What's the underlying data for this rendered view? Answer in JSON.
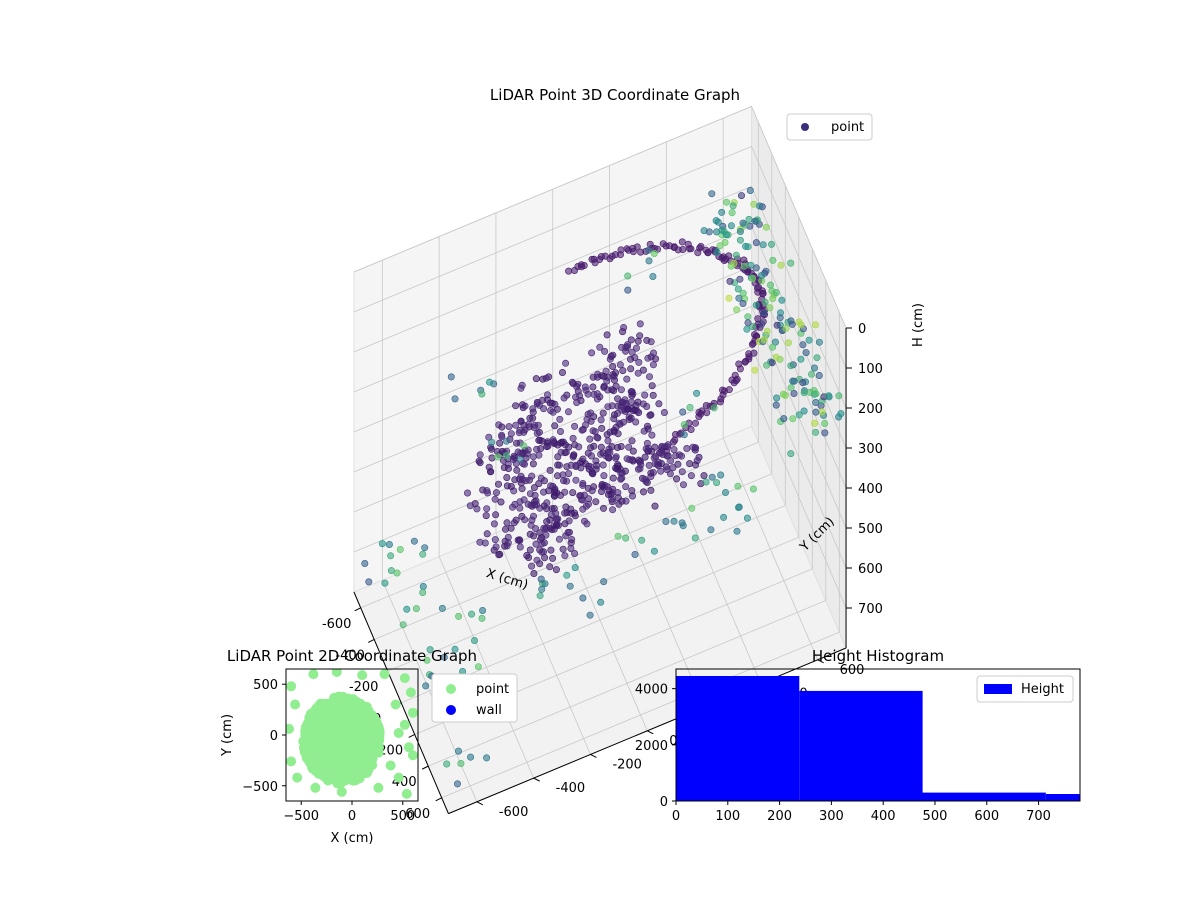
{
  "chart_data": [
    {
      "type": "scatter",
      "title": "LiDAR Point 3D Coordinate Graph",
      "xlabel": "X (cm)",
      "ylabel": "Y (cm)",
      "zlabel": "H (cm)",
      "xlim": [
        -700,
        700
      ],
      "ylim": [
        -700,
        700
      ],
      "zlim": [
        0,
        800
      ],
      "z_axis_inverted": true,
      "xticks": [
        -600,
        -400,
        -200,
        0,
        200,
        400,
        600
      ],
      "yticks": [
        -600,
        -400,
        -200,
        0,
        200,
        400,
        600
      ],
      "zticks": [
        0,
        100,
        200,
        300,
        400,
        500,
        600,
        700
      ],
      "colormap": "viridis",
      "legend": {
        "placement": "top-right",
        "entries": [
          {
            "label": "point",
            "color": "#3b2f7a"
          }
        ]
      },
      "grid": true,
      "series": [
        {
          "name": "point",
          "ring": [
            {
              "x": -620,
              "y": 40,
              "h": 180
            },
            {
              "x": -560,
              "y": 190,
              "h": 160
            },
            {
              "x": -470,
              "y": 330,
              "h": 150
            },
            {
              "x": -340,
              "y": 450,
              "h": 140
            },
            {
              "x": -180,
              "y": 530,
              "h": 130
            },
            {
              "x": 0,
              "y": 560,
              "h": 120
            },
            {
              "x": 180,
              "y": 530,
              "h": 120
            },
            {
              "x": 340,
              "y": 450,
              "h": 130
            },
            {
              "x": 470,
              "y": 330,
              "h": 140
            },
            {
              "x": 560,
              "y": 190,
              "h": 150
            },
            {
              "x": 620,
              "y": 40,
              "h": 160
            }
          ],
          "cluster": [
            {
              "x": -300,
              "y": -100,
              "h": 330
            },
            {
              "x": -220,
              "y": 60,
              "h": 340
            },
            {
              "x": -150,
              "y": -200,
              "h": 360
            },
            {
              "x": -80,
              "y": 120,
              "h": 330
            },
            {
              "x": 0,
              "y": -60,
              "h": 350
            },
            {
              "x": 80,
              "y": 40,
              "h": 340
            },
            {
              "x": 160,
              "y": -180,
              "h": 360
            },
            {
              "x": 240,
              "y": 80,
              "h": 330
            },
            {
              "x": 300,
              "y": -80,
              "h": 350
            },
            {
              "x": -260,
              "y": -260,
              "h": 420
            },
            {
              "x": -60,
              "y": -320,
              "h": 440
            },
            {
              "x": 140,
              "y": -300,
              "h": 430
            },
            {
              "x": 260,
              "y": -240,
              "h": 420
            },
            {
              "x": -360,
              "y": 160,
              "h": 320
            },
            {
              "x": 360,
              "y": 160,
              "h": 320
            }
          ],
          "scattered": [
            {
              "x": -640,
              "y": 620,
              "h": 250
            },
            {
              "x": -420,
              "y": 640,
              "h": 240
            },
            {
              "x": -200,
              "y": 650,
              "h": 230
            },
            {
              "x": 0,
              "y": 640,
              "h": 240
            },
            {
              "x": 220,
              "y": 650,
              "h": 230
            },
            {
              "x": 420,
              "y": 640,
              "h": 250
            },
            {
              "x": 620,
              "y": 620,
              "h": 240
            },
            {
              "x": 640,
              "y": 300,
              "h": 300
            },
            {
              "x": 650,
              "y": 0,
              "h": 320
            },
            {
              "x": 640,
              "y": -300,
              "h": 350
            },
            {
              "x": -650,
              "y": 300,
              "h": 300
            },
            {
              "x": -640,
              "y": -300,
              "h": 380
            },
            {
              "x": -400,
              "y": -600,
              "h": 600
            },
            {
              "x": -100,
              "y": -620,
              "h": 620
            },
            {
              "x": 200,
              "y": -600,
              "h": 650
            },
            {
              "x": 500,
              "y": -560,
              "h": 600
            },
            {
              "x": -500,
              "y": -200,
              "h": 500
            },
            {
              "x": 500,
              "y": -200,
              "h": 480
            },
            {
              "x": -300,
              "y": 400,
              "h": 520
            },
            {
              "x": 300,
              "y": 400,
              "h": 520
            },
            {
              "x": 0,
              "y": -450,
              "h": 700
            },
            {
              "x": 600,
              "y": -620,
              "h": 720
            },
            {
              "x": -620,
              "y": -620,
              "h": 740
            },
            {
              "x": 100,
              "y": 300,
              "h": 600
            }
          ]
        }
      ]
    },
    {
      "type": "scatter",
      "title": "LiDAR Point 2D Coordinate Graph",
      "xlabel": "X (cm)",
      "ylabel": "Y (cm)",
      "xlim": [
        -650,
        650
      ],
      "ylim": [
        -650,
        650
      ],
      "xticks": [
        -500,
        0,
        500
      ],
      "yticks": [
        500,
        0,
        -500
      ],
      "legend": {
        "placement": "outside-right",
        "entries": [
          {
            "label": "point",
            "color": "#90ee90"
          },
          {
            "label": "wall",
            "color": "#0000ff"
          }
        ]
      },
      "series": [
        {
          "name": "point",
          "cluster_center": {
            "x": -100,
            "y": -50
          },
          "cluster_radius": {
            "x": 380,
            "y": 430
          },
          "outliers": [
            {
              "x": -600,
              "y": 480
            },
            {
              "x": -560,
              "y": 300
            },
            {
              "x": -620,
              "y": 60
            },
            {
              "x": -600,
              "y": -260
            },
            {
              "x": -540,
              "y": -420
            },
            {
              "x": -380,
              "y": 600
            },
            {
              "x": -150,
              "y": 620
            },
            {
              "x": 100,
              "y": 590
            },
            {
              "x": 320,
              "y": 600
            },
            {
              "x": 520,
              "y": 560
            },
            {
              "x": 580,
              "y": 420
            },
            {
              "x": 600,
              "y": 220
            },
            {
              "x": 520,
              "y": 100
            },
            {
              "x": 560,
              "y": -120
            },
            {
              "x": 600,
              "y": -200
            },
            {
              "x": 460,
              "y": -420
            },
            {
              "x": 540,
              "y": -580
            },
            {
              "x": 260,
              "y": -520
            },
            {
              "x": -100,
              "y": -560
            },
            {
              "x": -360,
              "y": -520
            },
            {
              "x": 430,
              "y": 300
            },
            {
              "x": -460,
              "y": -60
            },
            {
              "x": 380,
              "y": -300
            },
            {
              "x": 460,
              "y": 20
            }
          ]
        },
        {
          "name": "wall",
          "points": []
        }
      ]
    },
    {
      "type": "bar",
      "title": "Height Histogram",
      "xlim": [
        0,
        780
      ],
      "ylim": [
        0,
        4700
      ],
      "xticks": [
        0,
        100,
        200,
        300,
        400,
        500,
        600,
        700
      ],
      "yticks": [
        0,
        2000,
        4000
      ],
      "legend": {
        "placement": "top-right",
        "entries": [
          {
            "label": "Height",
            "color": "#0000ff"
          }
        ]
      },
      "bins": [
        {
          "start": 0,
          "end": 238,
          "count": 4450
        },
        {
          "start": 238,
          "end": 476,
          "count": 3920
        },
        {
          "start": 476,
          "end": 714,
          "count": 300
        },
        {
          "start": 714,
          "end": 780,
          "count": 250
        }
      ]
    }
  ]
}
